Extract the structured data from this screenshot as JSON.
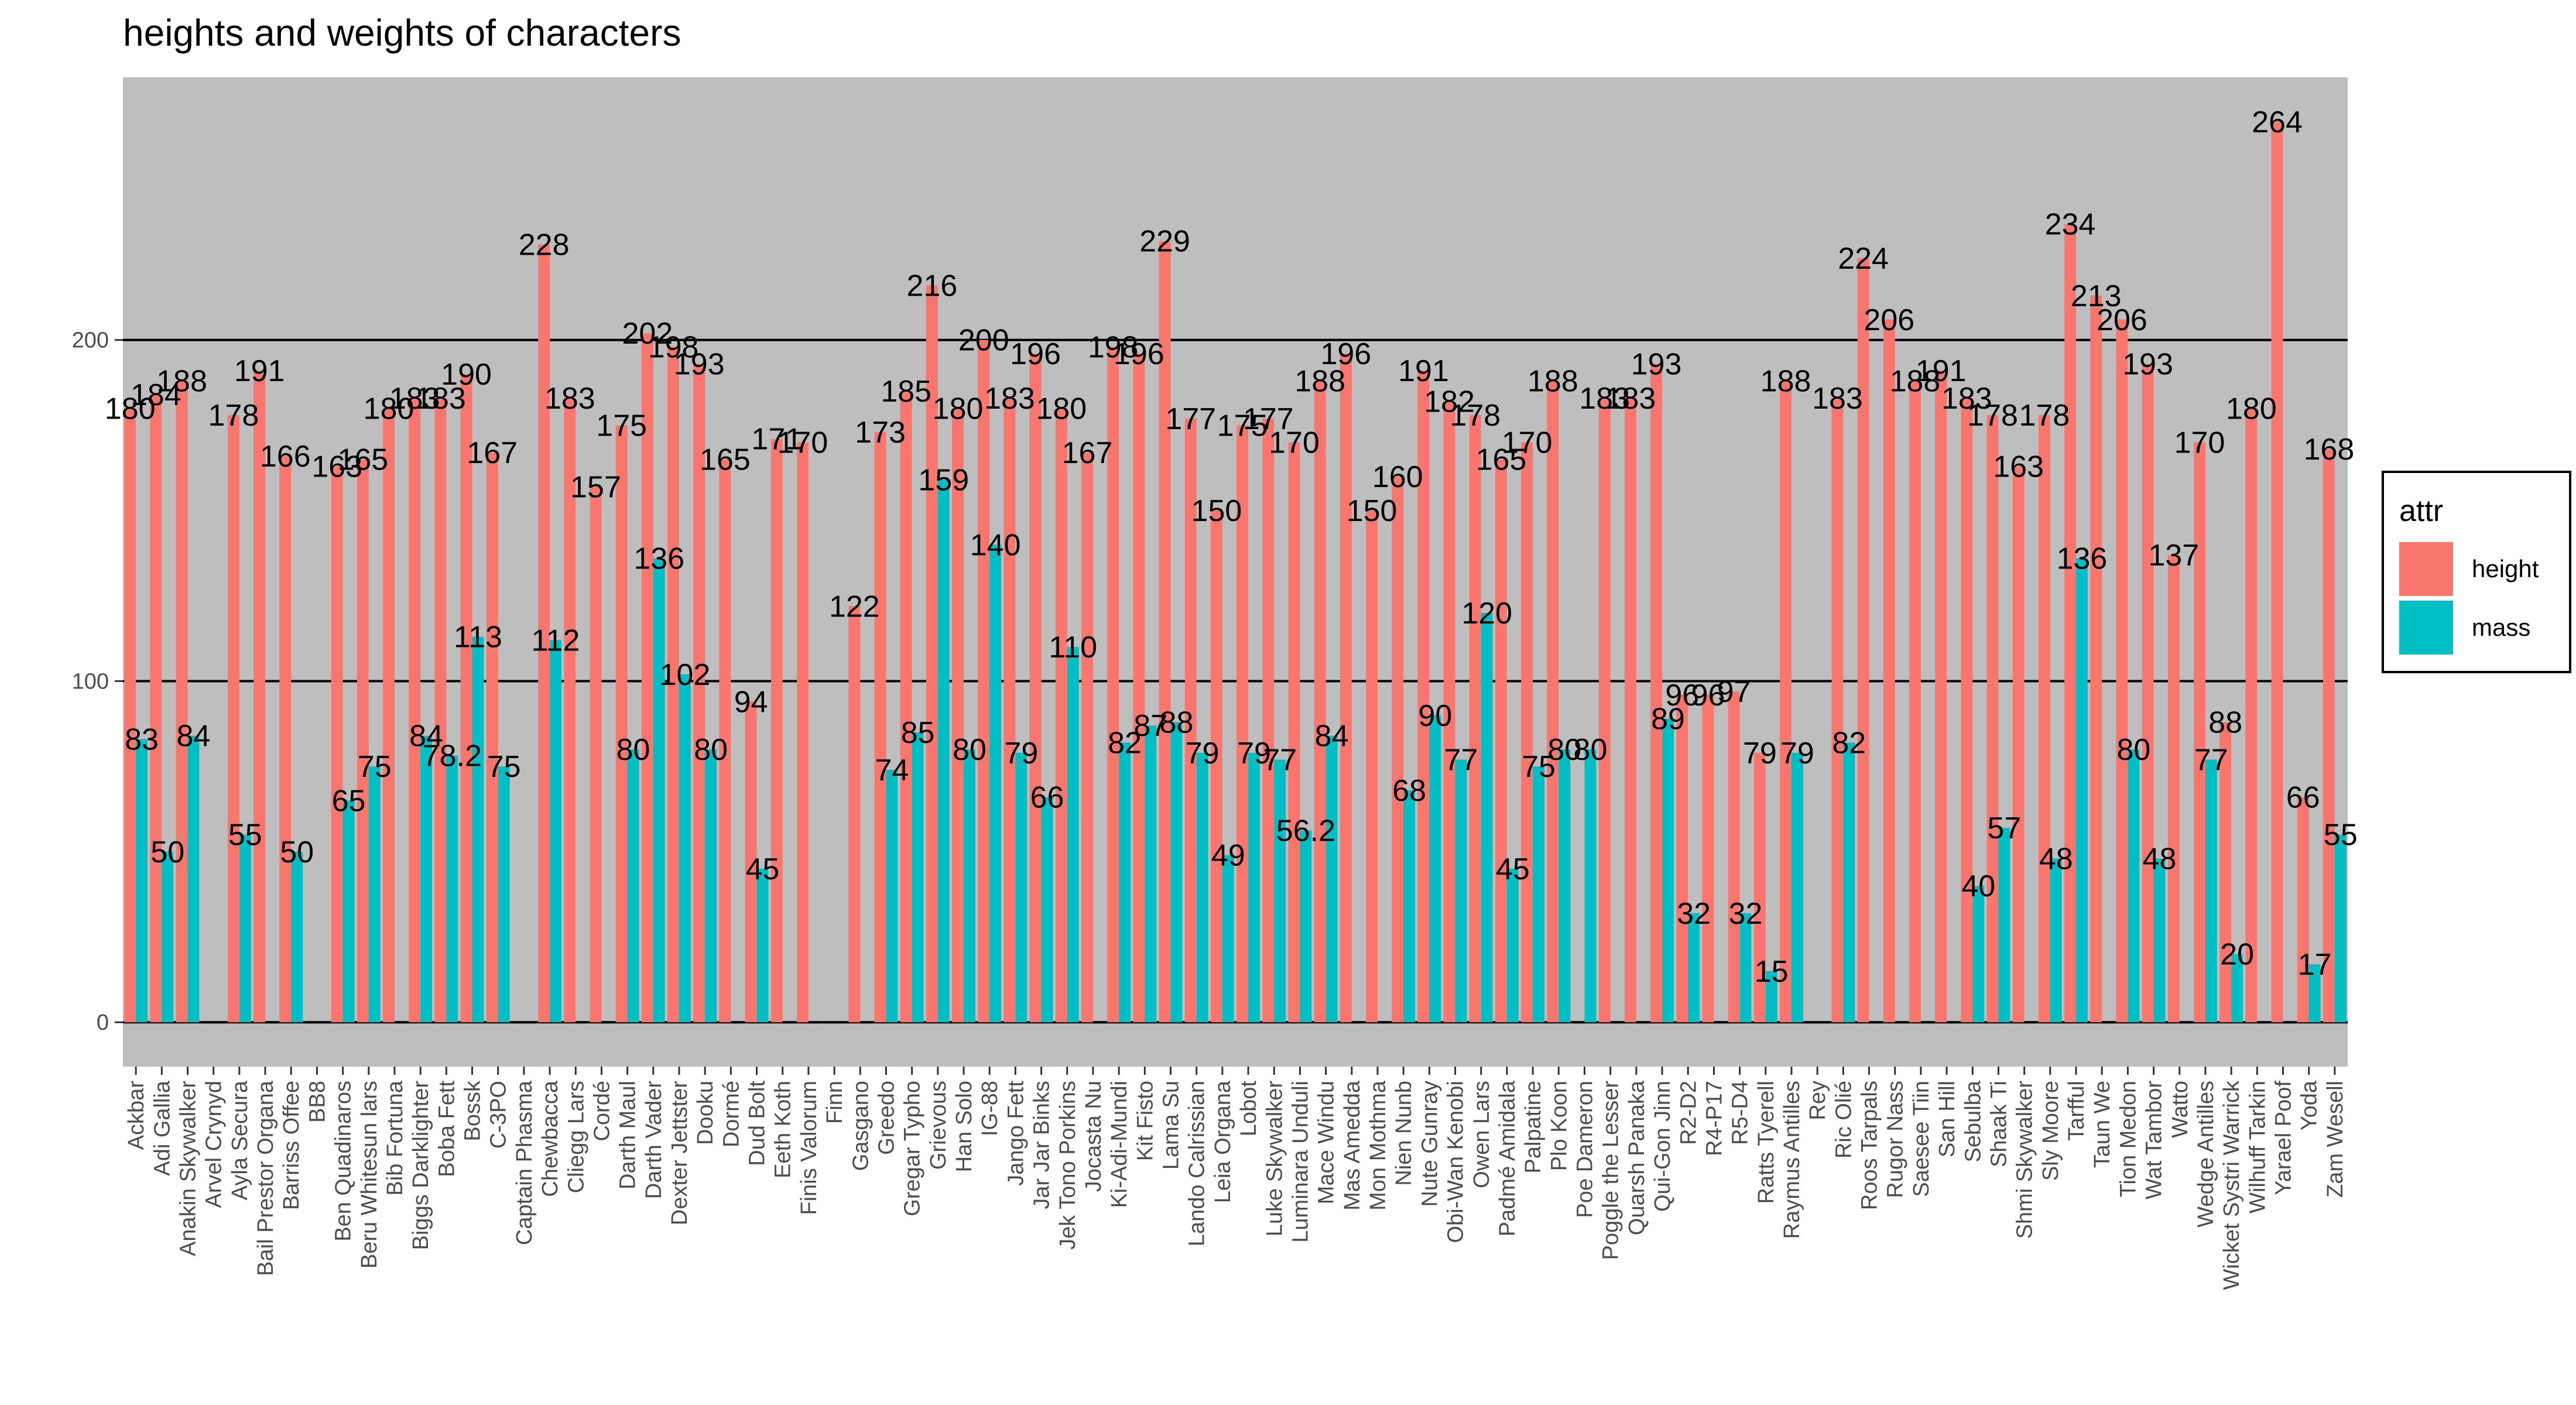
{
  "chart_data": {
    "type": "bar",
    "title": "heights and weights of characters",
    "xlabel": "",
    "ylabel": "",
    "ylim": [
      -13,
      277
    ],
    "yticks": [
      0,
      100,
      200
    ],
    "grid": "major horizontal lines at 0, 100, 200",
    "legend": {
      "title": "attr",
      "placement": "right",
      "entries": [
        {
          "name": "height",
          "color": "#F8766D"
        },
        {
          "name": "mass",
          "color": "#00BFC4"
        }
      ]
    },
    "colors": {
      "panel": "#BEBEBE",
      "height": "#F8766D",
      "mass": "#00BFC4"
    },
    "categories": [
      "Ackbar",
      "Adi Gallia",
      "Anakin Skywalker",
      "Arvel Crynyd",
      "Ayla Secura",
      "Bail Prestor Organa",
      "Barriss Offee",
      "BB8",
      "Ben Quadinaros",
      "Beru Whitesun lars",
      "Bib Fortuna",
      "Biggs Darklighter",
      "Boba Fett",
      "Bossk",
      "C-3PO",
      "Captain Phasma",
      "Chewbacca",
      "Cliegg Lars",
      "Cordé",
      "Darth Maul",
      "Darth Vader",
      "Dexter Jettster",
      "Dooku",
      "Dormé",
      "Dud Bolt",
      "Eeth Koth",
      "Finis Valorum",
      "Finn",
      "Gasgano",
      "Greedo",
      "Gregar Typho",
      "Grievous",
      "Han Solo",
      "IG-88",
      "Jango Fett",
      "Jar Jar Binks",
      "Jek Tono Porkins",
      "Jocasta Nu",
      "Ki-Adi-Mundi",
      "Kit Fisto",
      "Lama Su",
      "Lando Calrissian",
      "Leia Organa",
      "Lobot",
      "Luke Skywalker",
      "Luminara Unduli",
      "Mace Windu",
      "Mas Amedda",
      "Mon Mothma",
      "Nien Nunb",
      "Nute Gunray",
      "Obi-Wan Kenobi",
      "Owen Lars",
      "Padmé Amidala",
      "Palpatine",
      "Plo Koon",
      "Poe Dameron",
      "Poggle the Lesser",
      "Quarsh Panaka",
      "Qui-Gon Jinn",
      "R2-D2",
      "R4-P17",
      "R5-D4",
      "Ratts Tyerell",
      "Raymus Antilles",
      "Rey",
      "Ric Olié",
      "Roos Tarpals",
      "Rugor Nass",
      "Saesee Tiin",
      "San Hill",
      "Sebulba",
      "Shaak Ti",
      "Shmi Skywalker",
      "Sly Moore",
      "Tarfful",
      "Taun We",
      "Tion Medon",
      "Wat Tambor",
      "Watto",
      "Wedge Antilles",
      "Wicket Systri Warrick",
      "Wilhuff Tarkin",
      "Yarael Poof",
      "Yoda",
      "Zam Wesell"
    ],
    "series": [
      {
        "name": "height",
        "values": [
          180,
          184,
          188,
          null,
          178,
          191,
          166,
          null,
          163,
          165,
          180,
          183,
          183,
          190,
          167,
          null,
          228,
          183,
          157,
          175,
          202,
          198,
          193,
          165,
          94,
          171,
          170,
          null,
          122,
          173,
          185,
          216,
          180,
          200,
          183,
          196,
          180,
          167,
          198,
          196,
          229,
          177,
          150,
          175,
          177,
          170,
          188,
          196,
          150,
          160,
          191,
          182,
          178,
          165,
          170,
          188,
          null,
          183,
          183,
          193,
          96,
          96,
          97,
          79,
          188,
          null,
          183,
          224,
          206,
          188,
          191,
          183,
          178,
          163,
          178,
          234,
          213,
          206,
          193,
          137,
          170,
          88,
          180,
          264,
          66,
          168
        ]
      },
      {
        "name": "mass",
        "values": [
          83,
          50,
          84,
          null,
          55,
          null,
          50,
          null,
          65,
          75,
          null,
          84,
          78.2,
          113,
          75,
          null,
          112,
          null,
          null,
          80,
          136,
          102,
          80,
          null,
          45,
          null,
          null,
          null,
          null,
          74,
          85,
          159,
          80,
          140,
          79,
          66,
          110,
          null,
          82,
          87,
          88,
          79,
          49,
          79,
          77,
          56.2,
          84,
          null,
          null,
          68,
          90,
          77,
          120,
          45,
          75,
          80,
          80,
          null,
          null,
          89,
          32,
          null,
          32,
          15,
          79,
          null,
          82,
          null,
          null,
          null,
          null,
          40,
          57,
          null,
          48,
          136,
          null,
          80,
          48,
          null,
          77,
          20,
          null,
          null,
          17,
          55
        ]
      }
    ]
  }
}
